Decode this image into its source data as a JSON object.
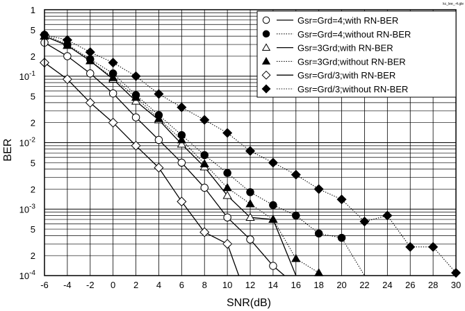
{
  "figure_tag": "kc_lee_-4.gle",
  "chart_data": {
    "type": "line",
    "xlabel": "SNR(dB)",
    "ylabel": "BER",
    "xlim": [
      -6,
      30
    ],
    "ylim": [
      0.0001,
      1
    ],
    "yscale": "log",
    "grid": true,
    "legend_position": "top-right",
    "x_ticks": [
      -6,
      -4,
      -2,
      0,
      2,
      4,
      6,
      8,
      10,
      12,
      14,
      16,
      18,
      20,
      22,
      24,
      26,
      28,
      30
    ],
    "x_tick_labels": [
      "-6",
      "-4",
      "-2",
      "0",
      "2",
      "4",
      "6",
      "8",
      "10",
      "12",
      "14",
      "16",
      "18",
      "20",
      "22",
      "24",
      "26",
      "28",
      "30"
    ],
    "y_ticks": [
      {
        "value": 1,
        "label": "1",
        "exp": ""
      },
      {
        "value": 0.5,
        "label": "5",
        "exp": ""
      },
      {
        "value": 0.2,
        "label": "2",
        "exp": ""
      },
      {
        "value": 0.1,
        "label": "10",
        "exp": "-1"
      },
      {
        "value": 0.05,
        "label": "5",
        "exp": ""
      },
      {
        "value": 0.02,
        "label": "2",
        "exp": ""
      },
      {
        "value": 0.01,
        "label": "10",
        "exp": "-2"
      },
      {
        "value": 0.005,
        "label": "5",
        "exp": ""
      },
      {
        "value": 0.002,
        "label": "2",
        "exp": ""
      },
      {
        "value": 0.001,
        "label": "10",
        "exp": "-3"
      },
      {
        "value": 0.0005,
        "label": "5",
        "exp": ""
      },
      {
        "value": 0.0002,
        "label": "2",
        "exp": ""
      },
      {
        "value": 0.0001,
        "label": "10",
        "exp": "-4"
      }
    ],
    "series": [
      {
        "name": "Gsr=Grd=4;with RN-BER",
        "marker": "circle-open",
        "line": "solid",
        "points": [
          [
            -6,
            0.32
          ],
          [
            -4,
            0.2
          ],
          [
            -2,
            0.11
          ],
          [
            0,
            0.055
          ],
          [
            2,
            0.024
          ],
          [
            4,
            0.011
          ],
          [
            6,
            0.005
          ],
          [
            8,
            0.0021
          ],
          [
            10,
            0.00075
          ],
          [
            12,
            0.00035
          ],
          [
            14,
            0.00014
          ],
          [
            15,
            0.0001
          ]
        ]
      },
      {
        "name": "Gsr=Grd=4;without RN-BER",
        "marker": "circle-filled",
        "line": "dotted",
        "points": [
          [
            -6,
            0.42
          ],
          [
            -4,
            0.3
          ],
          [
            -2,
            0.18
          ],
          [
            0,
            0.11
          ],
          [
            2,
            0.052
          ],
          [
            4,
            0.026
          ],
          [
            6,
            0.013
          ],
          [
            8,
            0.0065
          ],
          [
            10,
            0.0035
          ],
          [
            12,
            0.0018
          ],
          [
            14,
            0.00115
          ],
          [
            16,
            0.0008
          ],
          [
            18,
            0.00043
          ],
          [
            20,
            0.00037
          ],
          [
            22,
            0.0001
          ]
        ]
      },
      {
        "name": "Gsr=3Grd;with RN-BER",
        "marker": "triangle-open",
        "line": "solid",
        "points": [
          [
            -6,
            0.4
          ],
          [
            -4,
            0.29
          ],
          [
            -2,
            0.17
          ],
          [
            0,
            0.09
          ],
          [
            2,
            0.042
          ],
          [
            4,
            0.022
          ],
          [
            6,
            0.0095
          ],
          [
            8,
            0.0043
          ],
          [
            10,
            0.0016
          ],
          [
            12,
            0.00075
          ],
          [
            14,
            0.0007
          ],
          [
            16,
            0.0001
          ]
        ]
      },
      {
        "name": "Gsr=3Grd;without RN-BER",
        "marker": "triangle-filled",
        "line": "dotted",
        "points": [
          [
            -6,
            0.4
          ],
          [
            -4,
            0.29
          ],
          [
            -2,
            0.17
          ],
          [
            0,
            0.095
          ],
          [
            2,
            0.048
          ],
          [
            4,
            0.023
          ],
          [
            6,
            0.011
          ],
          [
            8,
            0.0048
          ],
          [
            10,
            0.0021
          ],
          [
            12,
            0.0012
          ],
          [
            14,
            0.0007
          ],
          [
            16,
            0.00018
          ],
          [
            18,
            0.00011
          ],
          [
            18.3,
            0.0001
          ]
        ]
      },
      {
        "name": "Gsr=Grd/3;with RN-BER",
        "marker": "diamond-open",
        "line": "solid",
        "points": [
          [
            -6,
            0.16
          ],
          [
            -4,
            0.09
          ],
          [
            -2,
            0.04
          ],
          [
            0,
            0.02
          ],
          [
            2,
            0.009
          ],
          [
            4,
            0.0042
          ],
          [
            6,
            0.0013
          ],
          [
            8,
            0.00045
          ],
          [
            10,
            0.0003
          ],
          [
            11,
            0.0001
          ]
        ]
      },
      {
        "name": "Gsr=Grd/3;without RN-BER",
        "marker": "diamond-filled",
        "line": "dotted",
        "points": [
          [
            -6,
            0.42
          ],
          [
            -4,
            0.35
          ],
          [
            -2,
            0.23
          ],
          [
            0,
            0.16
          ],
          [
            2,
            0.1
          ],
          [
            4,
            0.054
          ],
          [
            6,
            0.034
          ],
          [
            8,
            0.022
          ],
          [
            10,
            0.014
          ],
          [
            12,
            0.0075
          ],
          [
            14,
            0.005
          ],
          [
            16,
            0.0033
          ],
          [
            18,
            0.002
          ],
          [
            20,
            0.0014
          ],
          [
            22,
            0.00065
          ],
          [
            24,
            0.0008
          ],
          [
            26,
            0.00027
          ],
          [
            28,
            0.00027
          ],
          [
            30,
            0.00011
          ]
        ]
      }
    ]
  }
}
